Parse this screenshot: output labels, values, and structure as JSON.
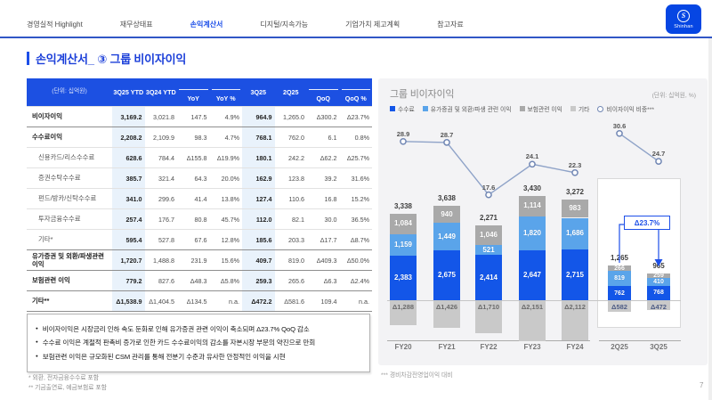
{
  "page": {
    "number": "7"
  },
  "nav": {
    "brand": "Shinhan",
    "logo_glyph": "S",
    "tabs": [
      {
        "label": "경영실적 Highlight",
        "active": false
      },
      {
        "label": "재무상태표",
        "active": false
      },
      {
        "label": "손익계산서",
        "active": true
      },
      {
        "label": "디지털/지속가능",
        "active": false
      },
      {
        "label": "기업가치 제고계획",
        "active": false
      },
      {
        "label": "참고자료",
        "active": false
      }
    ]
  },
  "title": "손익계산서_ ③ 그룹 비이자이익",
  "colors": {
    "primary_blue": "#1d4fe8",
    "header_blue": "#1c50e2",
    "highlight_column": "#e9f2fb",
    "bar_blue": "#1356e8",
    "bar_light_blue": "#5aa4ea",
    "bar_gray": "#a9a9a9",
    "bar_light_gray": "#c9c9c9",
    "line_color": "#8fa3c8"
  },
  "table": {
    "unit_label": "(단위: 십억원)",
    "columns": [
      "3Q25 YTD",
      "3Q24 YTD",
      "YoY",
      "YoY %",
      "3Q25",
      "2Q25",
      "QoQ",
      "QoQ %"
    ],
    "rows": [
      {
        "label": "비이자이익",
        "sub": false,
        "sep": false,
        "values": [
          "3,169.2",
          "3,021.8",
          "147.5",
          "4.9%",
          "964.9",
          "1,265.0",
          "Δ300.2",
          "Δ23.7%"
        ]
      },
      {
        "label": "수수료이익",
        "sub": false,
        "sep": true,
        "values": [
          "2,208.2",
          "2,109.9",
          "98.3",
          "4.7%",
          "768.1",
          "762.0",
          "6.1",
          "0.8%"
        ]
      },
      {
        "label": "신용카드/리스수수료",
        "sub": true,
        "sep": false,
        "values": [
          "628.6",
          "784.4",
          "Δ155.8",
          "Δ19.9%",
          "180.1",
          "242.2",
          "Δ62.2",
          "Δ25.7%"
        ]
      },
      {
        "label": "증권수탁수수료",
        "sub": true,
        "sep": false,
        "values": [
          "385.7",
          "321.4",
          "64.3",
          "20.0%",
          "162.9",
          "123.8",
          "39.2",
          "31.6%"
        ]
      },
      {
        "label": "펀드/방카/신탁수수료",
        "sub": true,
        "sep": false,
        "values": [
          "341.0",
          "299.6",
          "41.4",
          "13.8%",
          "127.4",
          "110.6",
          "16.8",
          "15.2%"
        ]
      },
      {
        "label": "투자금융수수료",
        "sub": true,
        "sep": false,
        "values": [
          "257.4",
          "176.7",
          "80.8",
          "45.7%",
          "112.0",
          "82.1",
          "30.0",
          "36.5%"
        ]
      },
      {
        "label": "기타*",
        "sub": true,
        "sep": false,
        "values": [
          "595.4",
          "527.8",
          "67.6",
          "12.8%",
          "185.6",
          "203.3",
          "Δ17.7",
          "Δ8.7%"
        ]
      },
      {
        "label": "유가증권 및 외환/파생관련 이익",
        "sub": false,
        "sep": true,
        "values": [
          "1,720.7",
          "1,488.8",
          "231.9",
          "15.6%",
          "409.7",
          "819.0",
          "Δ409.3",
          "Δ50.0%"
        ]
      },
      {
        "label": "보험관련 이익",
        "sub": false,
        "sep": true,
        "values": [
          "779.2",
          "827.6",
          "Δ48.3",
          "Δ5.8%",
          "259.3",
          "265.6",
          "Δ6.3",
          "Δ2.4%"
        ]
      },
      {
        "label": "기타**",
        "sub": false,
        "sep": true,
        "values": [
          "Δ1,538.9",
          "Δ1,404.5",
          "Δ134.5",
          "n.a.",
          "Δ472.2",
          "Δ581.6",
          "109.4",
          "n.a."
        ]
      }
    ]
  },
  "bullets": [
    "비이자이익은 시장금리 인하 속도 둔화로 인해 유가증권 관련 이익이 축소되며 Δ23.7% QoQ 감소",
    "수수료 이익은 계절적 판촉비 증가로 인한 카드 수수료이익의 감소를 자본시장 부문의 약진으로 만회",
    "보험관련 이익은 규모화된 CSM 관리를 통해 전분기 수준과 유사한 안정적인 이익을 시현"
  ],
  "footnotes": [
    "* 외환, 전자금융수수료 포함",
    "** 기금출연료, 예금보험료 포함"
  ],
  "chart_data": {
    "type": "bar",
    "title": "그룹 비이자이익",
    "unit": "(단위: 십억원, %)",
    "legend_position": "top",
    "categories": [
      "FY20",
      "FY21",
      "FY22",
      "FY23",
      "FY24",
      "2Q25",
      "3Q25"
    ],
    "series": [
      {
        "name": "수수료",
        "color": "#1356e8",
        "values": [
          2383,
          2675,
          2414,
          2647,
          2715,
          762,
          768
        ],
        "labels": [
          "2,383",
          "2,675",
          "2,414",
          "2,647",
          "2,715",
          "762",
          "768"
        ]
      },
      {
        "name": "유가증권 및 외환/파생 관련 이익",
        "color": "#5aa4ea",
        "values": [
          1159,
          1449,
          521,
          1820,
          1686,
          819,
          410
        ],
        "labels": [
          "1,159",
          "1,449",
          "521",
          "1,820",
          "1,686",
          "819",
          "410"
        ]
      },
      {
        "name": "보험관련 이익",
        "color": "#a9a9a9",
        "values": [
          1084,
          940,
          1046,
          1114,
          983,
          266,
          259
        ],
        "labels": [
          "1,084",
          "940",
          "1,046",
          "1,114",
          "983",
          "266",
          "259"
        ]
      },
      {
        "name": "기타",
        "color": "#c9c9c9",
        "values": [
          -1288,
          -1426,
          -1710,
          -2151,
          -2112,
          -582,
          -472
        ],
        "labels": [
          "Δ1,288",
          "Δ1,426",
          "Δ1,710",
          "Δ2,151",
          "Δ2,112",
          "Δ582",
          "Δ472"
        ]
      }
    ],
    "totals": {
      "values": [
        3338,
        3638,
        2271,
        3430,
        3272,
        1265,
        965
      ],
      "labels": [
        "3,338",
        "3,638",
        "2,271",
        "3,430",
        "3,272",
        "1,265",
        "965"
      ]
    },
    "line_series": {
      "name": "비이자이익 비중***",
      "values": [
        28.9,
        28.7,
        17.6,
        24.1,
        22.3,
        30.6,
        24.7
      ],
      "labels": [
        "28.9",
        "28.7",
        "17.6",
        "24.1",
        "22.3",
        "30.6",
        "24.7"
      ]
    },
    "annotation": "Δ23.7%",
    "highlight_group": [
      "2Q25",
      "3Q25"
    ],
    "footnote": "*** 경비차감전영업이익 대비"
  }
}
